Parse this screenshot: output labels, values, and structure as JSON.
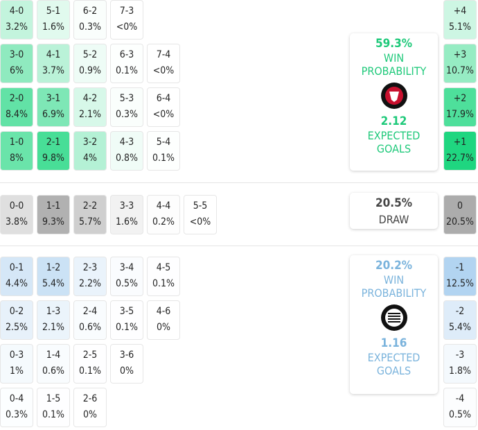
{
  "colors": {
    "home": "#1fd680",
    "away": "#78b4e6",
    "draw": "#9a9a9a"
  },
  "home": {
    "win_pct": "59.3%",
    "win_label1": "WIN",
    "win_label2": "PROBABILITY",
    "xg": "2.12",
    "xg_label1": "EXPECTED",
    "xg_label2": "GOALS",
    "badge": "fc-midtjylland-crest",
    "rows": [
      [
        {
          "s": "4-0",
          "p": "3.2%"
        },
        {
          "s": "5-1",
          "p": "1.6%"
        },
        {
          "s": "6-2",
          "p": "0.3%"
        },
        {
          "s": "7-3",
          "p": "<0%"
        }
      ],
      [
        {
          "s": "3-0",
          "p": "6%"
        },
        {
          "s": "4-1",
          "p": "3.7%"
        },
        {
          "s": "5-2",
          "p": "0.9%"
        },
        {
          "s": "6-3",
          "p": "0.1%"
        },
        {
          "s": "7-4",
          "p": "<0%"
        }
      ],
      [
        {
          "s": "2-0",
          "p": "8.4%"
        },
        {
          "s": "3-1",
          "p": "6.9%"
        },
        {
          "s": "4-2",
          "p": "2.1%"
        },
        {
          "s": "5-3",
          "p": "0.3%"
        },
        {
          "s": "6-4",
          "p": "<0%"
        }
      ],
      [
        {
          "s": "1-0",
          "p": "8%"
        },
        {
          "s": "2-1",
          "p": "9.8%"
        },
        {
          "s": "3-2",
          "p": "4%"
        },
        {
          "s": "4-3",
          "p": "0.8%"
        },
        {
          "s": "5-4",
          "p": "0.1%"
        }
      ]
    ],
    "margins": [
      {
        "s": "+4",
        "p": "5.1%"
      },
      {
        "s": "+3",
        "p": "10.7%"
      },
      {
        "s": "+2",
        "p": "17.9%"
      },
      {
        "s": "+1",
        "p": "22.7%"
      }
    ]
  },
  "draw": {
    "pct": "20.5%",
    "label": "DRAW",
    "row": [
      {
        "s": "0-0",
        "p": "3.8%"
      },
      {
        "s": "1-1",
        "p": "9.3%"
      },
      {
        "s": "2-2",
        "p": "5.7%"
      },
      {
        "s": "3-3",
        "p": "1.6%"
      },
      {
        "s": "4-4",
        "p": "0.2%"
      },
      {
        "s": "5-5",
        "p": "<0%"
      }
    ],
    "margin": {
      "s": "0",
      "p": "20.5%"
    }
  },
  "away": {
    "win_pct": "20.2%",
    "win_label1": "WIN",
    "win_label2": "PROBABILITY",
    "xg": "1.16",
    "xg_label1": "EXPECTED",
    "xg_label2": "GOALS",
    "badge": "sturm-graz-crest",
    "rows": [
      [
        {
          "s": "0-1",
          "p": "4.4%"
        },
        {
          "s": "1-2",
          "p": "5.4%"
        },
        {
          "s": "2-3",
          "p": "2.2%"
        },
        {
          "s": "3-4",
          "p": "0.5%"
        },
        {
          "s": "4-5",
          "p": "0.1%"
        }
      ],
      [
        {
          "s": "0-2",
          "p": "2.5%"
        },
        {
          "s": "1-3",
          "p": "2.1%"
        },
        {
          "s": "2-4",
          "p": "0.6%"
        },
        {
          "s": "3-5",
          "p": "0.1%"
        },
        {
          "s": "4-6",
          "p": "0%"
        }
      ],
      [
        {
          "s": "0-3",
          "p": "1%"
        },
        {
          "s": "1-4",
          "p": "0.6%"
        },
        {
          "s": "2-5",
          "p": "0.1%"
        },
        {
          "s": "3-6",
          "p": "0%"
        }
      ],
      [
        {
          "s": "0-4",
          "p": "0.3%"
        },
        {
          "s": "1-5",
          "p": "0.1%"
        },
        {
          "s": "2-6",
          "p": "0%"
        }
      ]
    ],
    "margins": [
      {
        "s": "-1",
        "p": "12.5%"
      },
      {
        "s": "-2",
        "p": "5.4%"
      },
      {
        "s": "-3",
        "p": "1.8%"
      },
      {
        "s": "-4",
        "p": "0.5%"
      }
    ]
  }
}
